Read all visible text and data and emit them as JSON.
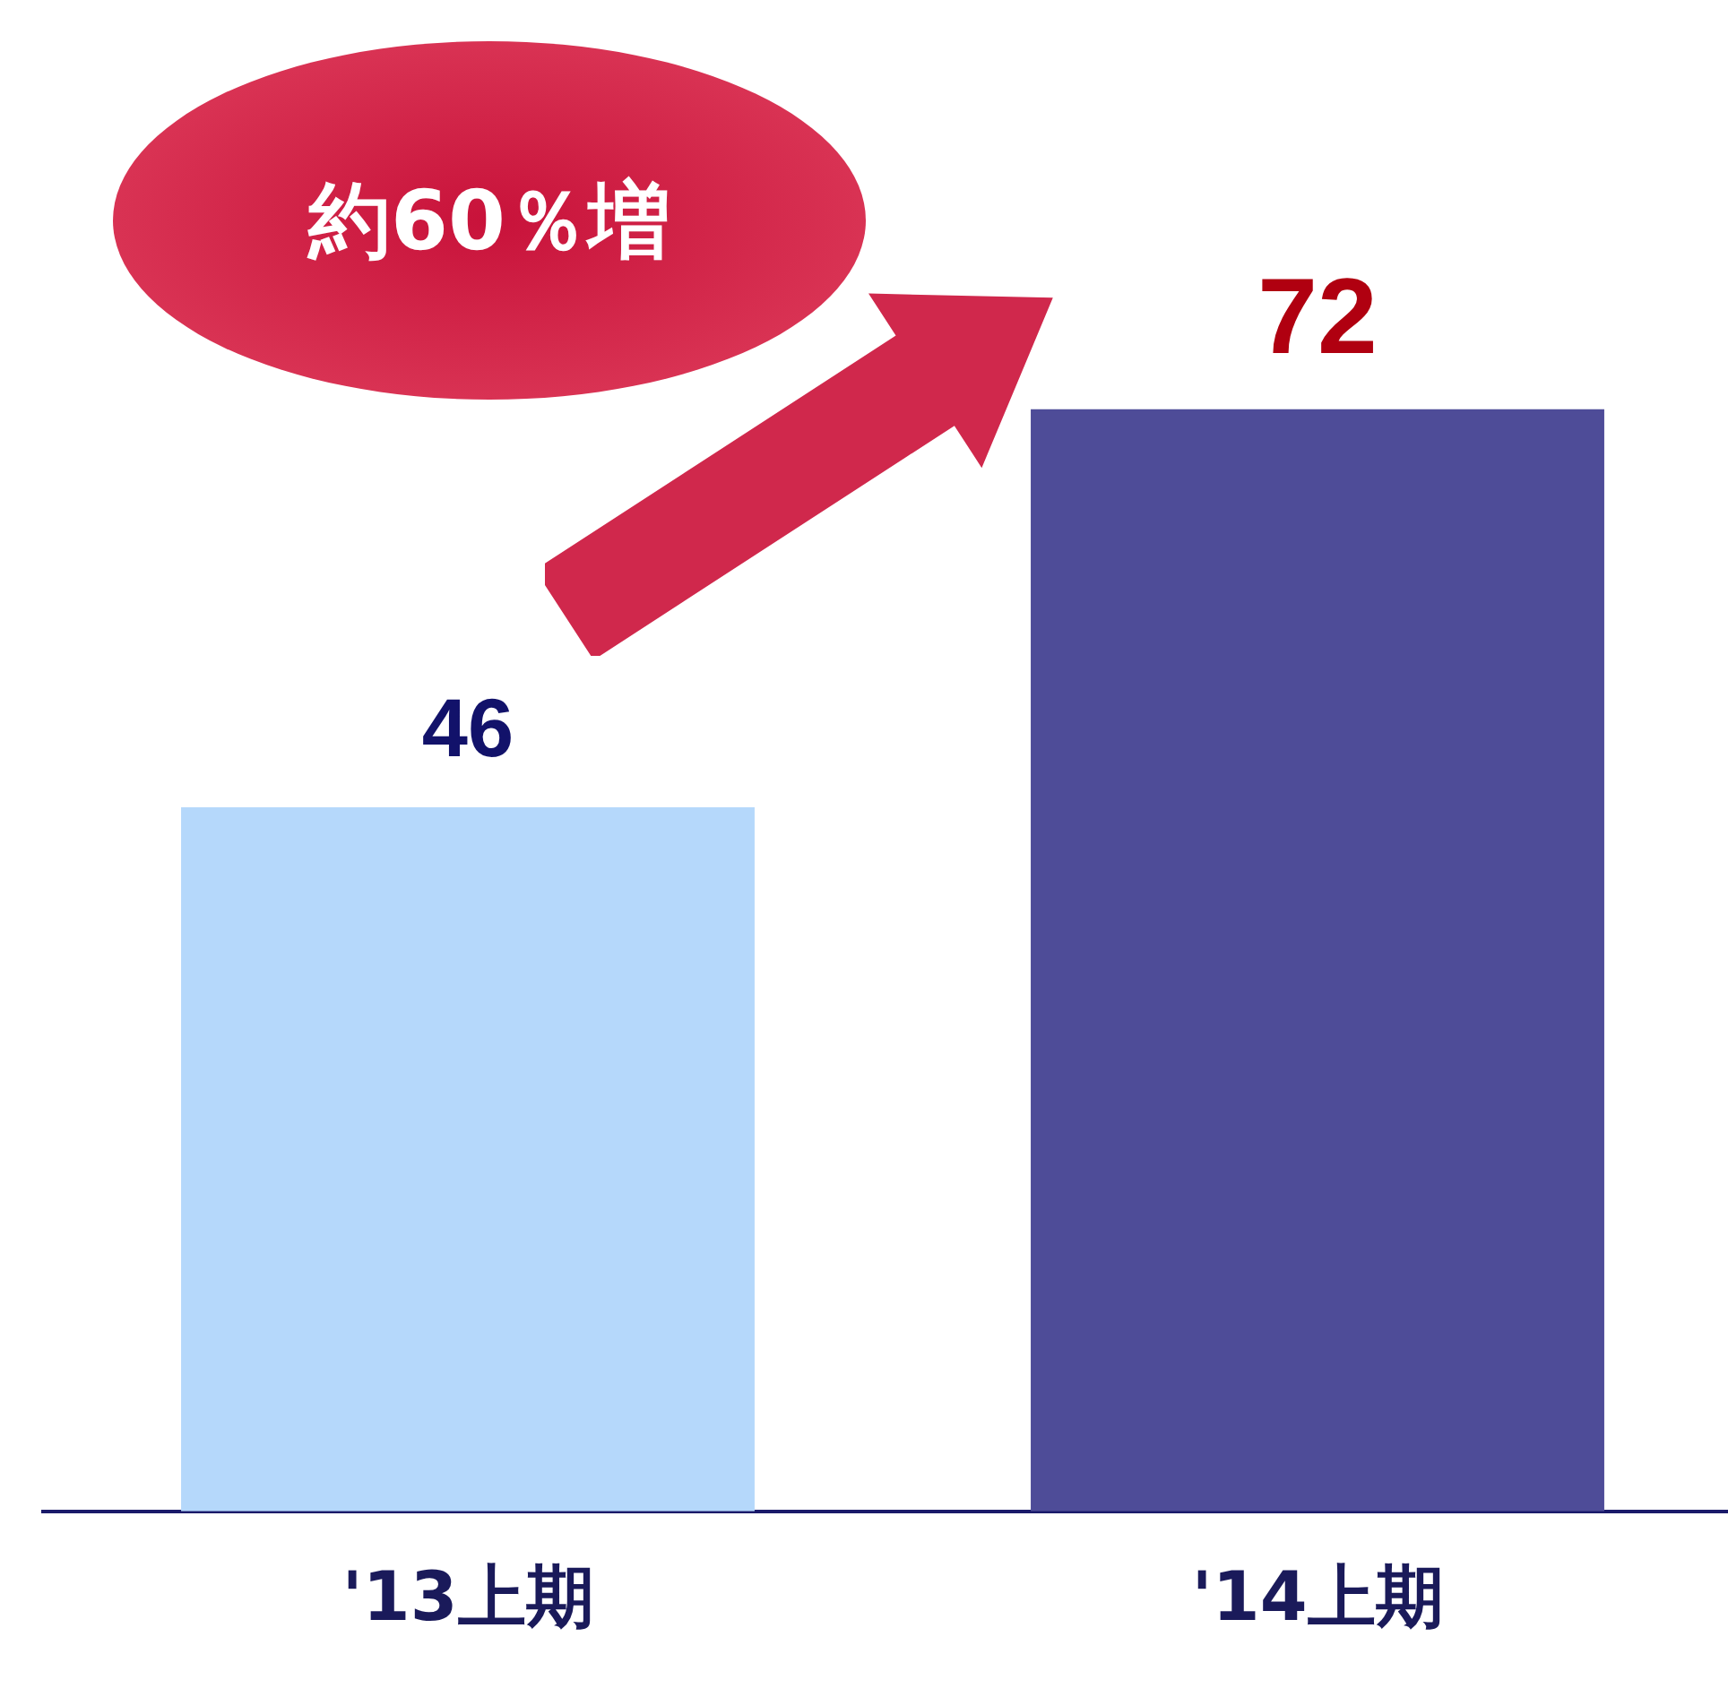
{
  "chart_data": {
    "type": "bar",
    "categories": [
      "'13上期",
      "'14上期"
    ],
    "values": [
      46,
      72
    ],
    "colors": [
      "#b5d8fb",
      "#4e4c98"
    ],
    "tick_labels": "x",
    "grid": false,
    "legend": false,
    "data_labels": true,
    "annotations": [
      "約60％増"
    ]
  }
}
